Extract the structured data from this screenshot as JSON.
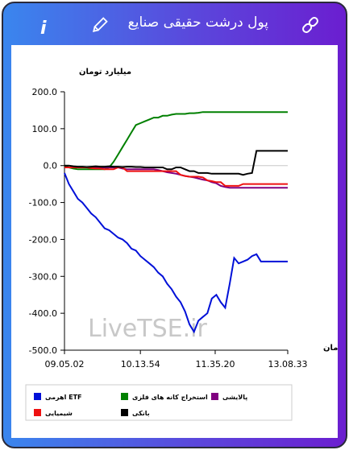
{
  "header": {
    "title": "پول درشت حقیقی صنایع"
  },
  "chart_data": {
    "type": "line",
    "y_axis_label": "میلیارد تومان",
    "x_axis_label": "زمان",
    "watermark": "LiveTSE.ir",
    "x": [
      0,
      2,
      4,
      6,
      8,
      10,
      12,
      14,
      16,
      18,
      20,
      22,
      24,
      26,
      28,
      30,
      32,
      34,
      36,
      38,
      40,
      42,
      44,
      46,
      48,
      50,
      52,
      54,
      56,
      58,
      60,
      62,
      64,
      66,
      68,
      70,
      72,
      74,
      76,
      78,
      80,
      82,
      84,
      86,
      88,
      90,
      92,
      94,
      96,
      98,
      100
    ],
    "xlim": [
      0,
      100
    ],
    "xticks": [
      {
        "value": 0,
        "label": "09.05.02"
      },
      {
        "value": 34,
        "label": "10.13.54"
      },
      {
        "value": 67.5,
        "label": "11.35.20"
      },
      {
        "value": 100,
        "label": "13.08.33"
      }
    ],
    "ylim": [
      -500,
      200
    ],
    "yticks": [
      {
        "value": 200,
        "label": "200.0"
      },
      {
        "value": 100,
        "label": "100.0"
      },
      {
        "value": 0,
        "label": "0.0"
      },
      {
        "value": -100,
        "label": "-100.0"
      },
      {
        "value": -200,
        "label": "-200.0"
      },
      {
        "value": -300,
        "label": "-300.0"
      },
      {
        "value": -400,
        "label": "-400.0"
      },
      {
        "value": -500,
        "label": "-500.0"
      }
    ],
    "grid": false,
    "legend_position": "bottom",
    "series": [
      {
        "name": "ETF اهرمی",
        "color": "#0010d8",
        "values": [
          -20,
          -50,
          -70,
          -90,
          -100,
          -115,
          -130,
          -140,
          -155,
          -170,
          -175,
          -185,
          -195,
          -200,
          -210,
          -225,
          -230,
          -245,
          -255,
          -265,
          -275,
          -290,
          -300,
          -320,
          -335,
          -355,
          -370,
          -395,
          -430,
          -450,
          -420,
          -410,
          -400,
          -360,
          -350,
          -370,
          -385,
          -320,
          -250,
          -265,
          -260,
          -255,
          -245,
          -240,
          -260,
          -260,
          -260,
          -260,
          -260,
          -260,
          -260
        ]
      },
      {
        "name": "استخراج کانه های فلزی",
        "color": "#008000",
        "values": [
          0,
          -5,
          -8,
          -10,
          -10,
          -10,
          -10,
          -10,
          -10,
          -10,
          -5,
          10,
          30,
          50,
          70,
          90,
          110,
          115,
          120,
          125,
          130,
          130,
          135,
          135,
          138,
          140,
          140,
          140,
          142,
          142,
          143,
          145,
          145,
          145,
          145,
          145,
          145,
          145,
          145,
          145,
          145,
          145,
          145,
          145,
          145,
          145,
          145,
          145,
          145,
          145,
          145
        ]
      },
      {
        "name": "پالایشی",
        "color": "#800080",
        "values": [
          -5,
          -5,
          -5,
          -5,
          -5,
          -5,
          -5,
          -5,
          -5,
          -5,
          -5,
          -5,
          -5,
          -8,
          -10,
          -10,
          -10,
          -10,
          -10,
          -10,
          -10,
          -12,
          -15,
          -18,
          -20,
          -22,
          -25,
          -28,
          -30,
          -32,
          -35,
          -38,
          -40,
          -45,
          -48,
          -55,
          -58,
          -60,
          -60,
          -60,
          -60,
          -60,
          -60,
          -60,
          -60,
          -60,
          -60,
          -60,
          -60,
          -60,
          -60
        ]
      },
      {
        "name": "شیمیایی",
        "color": "#ee1111",
        "values": [
          -5,
          -5,
          -5,
          -5,
          -5,
          -5,
          -7,
          -8,
          -8,
          -10,
          -10,
          -10,
          -5,
          -5,
          -15,
          -15,
          -15,
          -15,
          -15,
          -15,
          -15,
          -15,
          -15,
          -15,
          -15,
          -15,
          -25,
          -28,
          -30,
          -30,
          -30,
          -32,
          -40,
          -42,
          -45,
          -45,
          -55,
          -55,
          -55,
          -55,
          -50,
          -50,
          -50,
          -50,
          -50,
          -50,
          -50,
          -50,
          -50,
          -50,
          -50
        ]
      },
      {
        "name": "بانکی",
        "color": "#000000",
        "values": [
          0,
          0,
          -2,
          -3,
          -3,
          -4,
          -3,
          -2,
          -3,
          -3,
          -2,
          -3,
          -3,
          -4,
          -3,
          -3,
          -4,
          -4,
          -5,
          -5,
          -5,
          -5,
          -5,
          -10,
          -10,
          -5,
          -5,
          -10,
          -15,
          -15,
          -20,
          -20,
          -20,
          -22,
          -22,
          -22,
          -22,
          -22,
          -22,
          -22,
          -25,
          -22,
          -20,
          40,
          40,
          40,
          40,
          40,
          40,
          40,
          40
        ]
      }
    ]
  }
}
